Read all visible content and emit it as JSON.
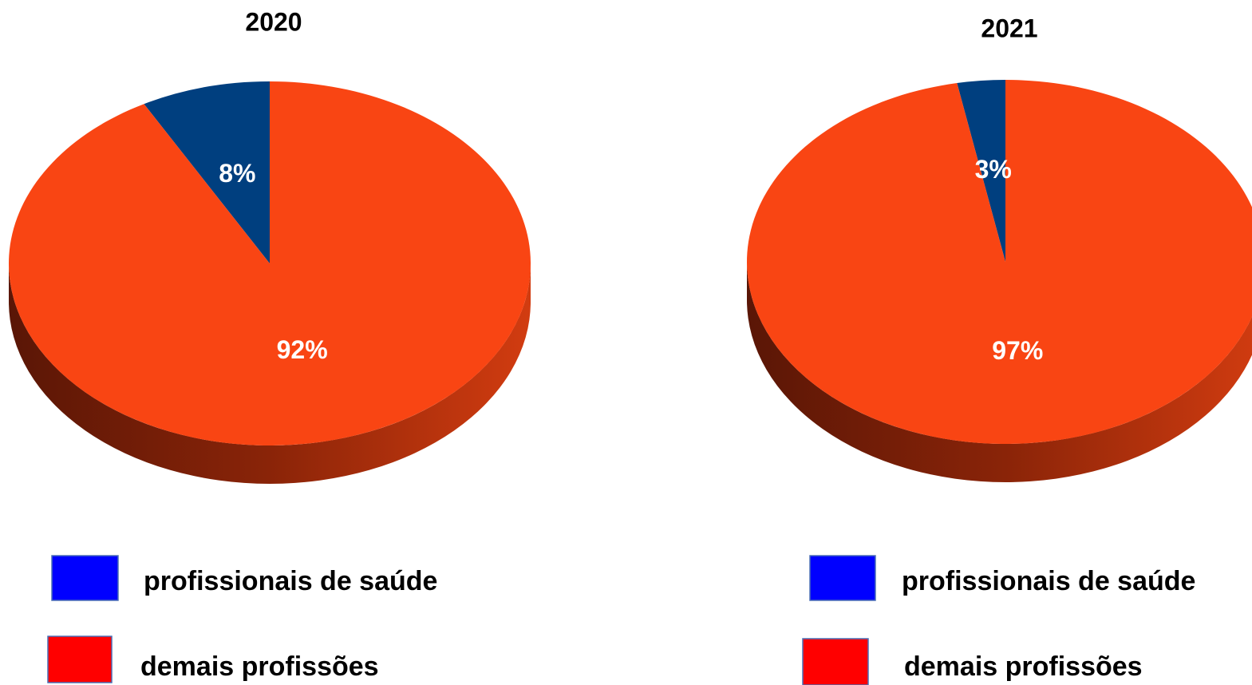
{
  "chart_data": [
    {
      "type": "pie",
      "title": "2020",
      "categories": [
        "profissionais de saúde",
        "demais profissões"
      ],
      "values": [
        8,
        92
      ],
      "value_labels": [
        "8%",
        "92%"
      ],
      "colors": [
        "#003f7f",
        "#f94513"
      ],
      "legend_colors": [
        "#0000ff",
        "#ff0000"
      ]
    },
    {
      "type": "pie",
      "title": "2021",
      "categories": [
        "profissionais de saúde",
        "demais profissões"
      ],
      "values": [
        3,
        97
      ],
      "value_labels": [
        "3%",
        "97%"
      ],
      "colors": [
        "#003f7f",
        "#f94513"
      ],
      "legend_colors": [
        "#0000ff",
        "#ff0000"
      ]
    }
  ]
}
